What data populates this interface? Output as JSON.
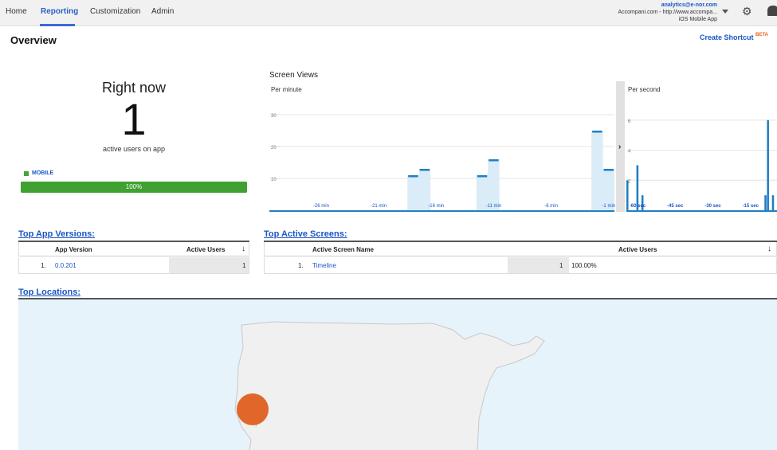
{
  "nav": {
    "tabs": [
      {
        "label": "Home"
      },
      {
        "label": "Reporting"
      },
      {
        "label": "Customization"
      },
      {
        "label": "Admin"
      }
    ],
    "account": {
      "email": "analytics@e-nor.com",
      "property": "Accompani.com - http://www.accompa...",
      "view": "iOS Mobile App"
    },
    "icons": [
      "chevron-down-icon",
      "gear-icon",
      "bell-icon"
    ]
  },
  "page": {
    "title": "Overview",
    "create_shortcut": "Create Shortcut",
    "beta": "BETA"
  },
  "right_now": {
    "title": "Right now",
    "count": "1",
    "subtitle": "active users on app",
    "device_label": "MOBILE",
    "device_percent_text": "100%",
    "device_fraction": 1.0,
    "colors": {
      "mobile": "#43a637"
    }
  },
  "screen_views": {
    "title": "Screen Views",
    "per_minute_label": "Per minute",
    "per_second_label": "Per second",
    "expand_icon": "chevron-right-icon"
  },
  "chart_data": [
    {
      "type": "bar",
      "title": "Per minute",
      "x_labels": [
        "-26 min",
        "-21 min",
        "-16 min",
        "-11 min",
        "-6 min",
        "-1 min"
      ],
      "y_ticks": [
        10,
        20,
        30
      ],
      "ylim": [
        0,
        36
      ],
      "x_minutes": [
        -30,
        -29,
        -28,
        -27,
        -26,
        -25,
        -24,
        -23,
        -22,
        -21,
        -20,
        -19,
        -18,
        -17,
        -16,
        -15,
        -14,
        -13,
        -12,
        -11,
        -10,
        -9,
        -8,
        -7,
        -6,
        -5,
        -4,
        -3,
        -2,
        -1
      ],
      "values": [
        0,
        0,
        0,
        0,
        0,
        0,
        0,
        0,
        0,
        0,
        0,
        0,
        11,
        13,
        0,
        0,
        0,
        0,
        11,
        16,
        0,
        0,
        0,
        0,
        0,
        0,
        0,
        0,
        25,
        13
      ],
      "highlight_columns": [
        12,
        13,
        18,
        19,
        28,
        29
      ],
      "colors": {
        "bar": "#1f7fc4",
        "highlight": "#d9ecf7",
        "baseline": "#1f7fc4"
      }
    },
    {
      "type": "bar",
      "title": "Per second",
      "x_labels": [
        "-60 sec",
        "-45 sec",
        "-30 sec",
        "-15 sec"
      ],
      "y_ticks": [
        2,
        4,
        6
      ],
      "ylim": [
        0,
        7
      ],
      "x_seconds": [
        -60,
        -59,
        -58,
        -57,
        -56,
        -55,
        -54,
        -53,
        -52,
        -51,
        -50,
        -49,
        -48,
        -47,
        -46,
        -45,
        -44,
        -43,
        -42,
        -41,
        -40,
        -39,
        -38,
        -37,
        -36,
        -35,
        -34,
        -33,
        -32,
        -31,
        -30,
        -29,
        -28,
        -27,
        -26,
        -25,
        -24,
        -23,
        -22,
        -21,
        -20,
        -19,
        -18,
        -17,
        -16,
        -15,
        -14,
        -13,
        -12,
        -11,
        -10,
        -9,
        -8,
        -7,
        -6,
        -5,
        -4,
        -3,
        -2,
        -1
      ],
      "values": [
        2,
        0,
        0,
        0,
        3,
        0,
        1,
        0,
        0,
        0,
        0,
        0,
        0,
        0,
        0,
        0,
        0,
        0,
        0,
        0,
        0,
        0,
        0,
        0,
        0,
        0,
        0,
        0,
        0,
        0,
        0,
        0,
        0,
        0,
        0,
        0,
        0,
        0,
        0,
        0,
        0,
        0,
        0,
        0,
        0,
        0,
        0,
        0,
        0,
        0,
        0,
        0,
        0,
        0,
        0,
        1,
        6,
        0,
        1,
        0
      ],
      "colors": {
        "bar": "#1f7fc4"
      }
    }
  ],
  "top_app_versions": {
    "title": "Top App Versions:",
    "columns": [
      "App Version",
      "Active Users"
    ],
    "sort_icon": "arrow-down-icon",
    "rows": [
      {
        "index": "1.",
        "version": "0.0.201",
        "users": "1"
      }
    ]
  },
  "top_active_screens": {
    "title": "Top Active Screens:",
    "columns": [
      "Active Screen Name",
      "Active Users"
    ],
    "sort_icon": "arrow-down-icon",
    "rows": [
      {
        "index": "1.",
        "name": "Timeline",
        "users": "1",
        "percent": "100.00%"
      }
    ]
  },
  "top_locations": {
    "title": "Top Locations:",
    "colors": {
      "water": "#e6f3fa",
      "land": "#f0f0f0",
      "marker": "#e0662a"
    }
  }
}
